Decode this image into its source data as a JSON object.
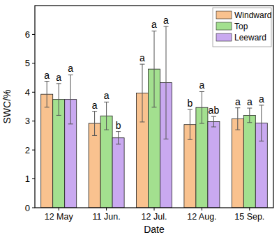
{
  "chart_data": {
    "type": "bar",
    "x_label": "Date",
    "y_label": "SWC/%",
    "categories": [
      "12 May",
      "11 Jun.",
      "12 Jul.",
      "12 Aug.",
      "15 Sep."
    ],
    "series": [
      {
        "name": "Windward",
        "color": "#f9c28f",
        "values": [
          3.93,
          2.92,
          3.97,
          2.88,
          3.08
        ],
        "errors": [
          0.45,
          0.42,
          1.0,
          0.52,
          0.38
        ],
        "letters": [
          "a",
          "a",
          "a",
          "b",
          "a"
        ]
      },
      {
        "name": "Top",
        "color": "#a3e08f",
        "values": [
          3.75,
          3.18,
          4.8,
          3.47,
          3.2
        ],
        "errors": [
          0.55,
          0.48,
          1.32,
          0.55,
          0.25
        ],
        "letters": [
          "a",
          "a",
          "a",
          "a",
          "a"
        ]
      },
      {
        "name": "Leeward",
        "color": "#c9a9f0",
        "values": [
          3.75,
          2.42,
          4.33,
          2.98,
          2.93
        ],
        "errors": [
          0.85,
          0.22,
          1.95,
          0.18,
          0.62
        ],
        "letters": [
          "a",
          "b",
          "a",
          "ab",
          "a"
        ]
      }
    ],
    "ylim": [
      0,
      7
    ],
    "yticks": [
      0,
      1,
      2,
      3,
      4,
      5,
      6
    ],
    "legend": "top-right"
  }
}
